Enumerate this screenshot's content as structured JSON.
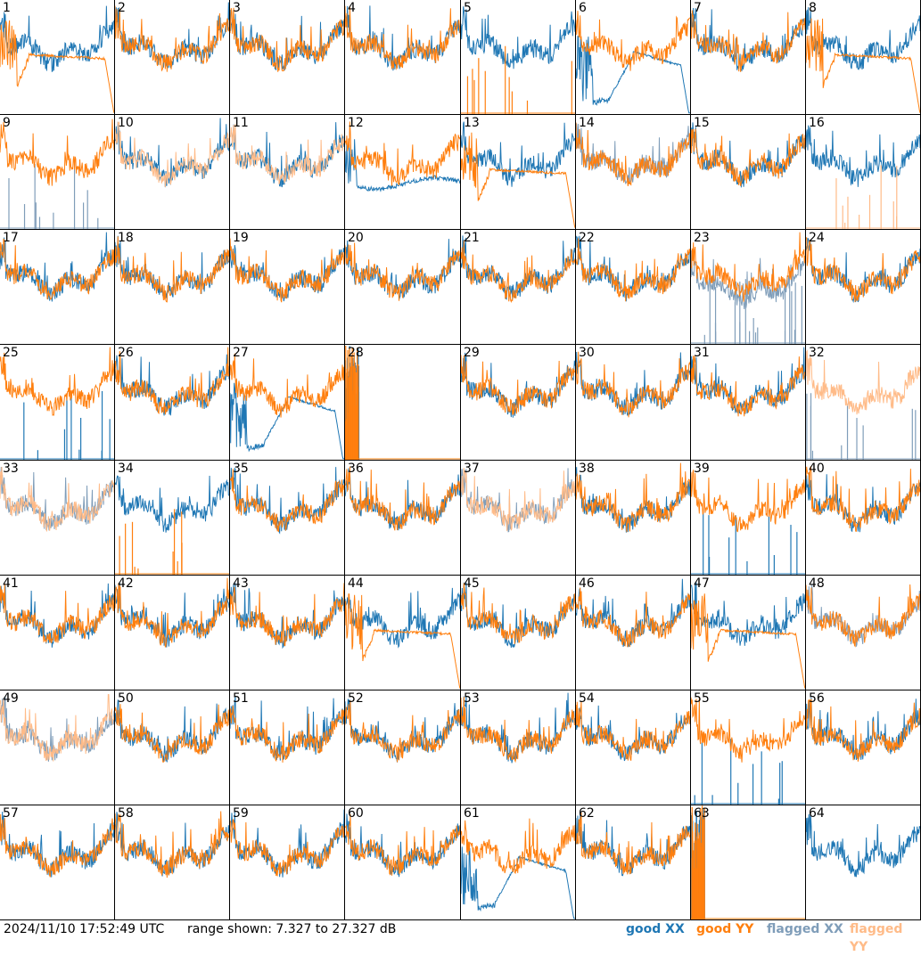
{
  "footer": {
    "timestamp": "2024/11/10 17:52:49 UTC",
    "range_text": "range shown: 7.327 to 27.327 dB",
    "legend": [
      {
        "label": "good XX",
        "color": "#1f77b4"
      },
      {
        "label": "good YY",
        "color": "#ff7f0e"
      },
      {
        "label": "flagged XX",
        "color": "#7f9db9"
      },
      {
        "label": "flagged YY",
        "color": "#ffbb88"
      }
    ]
  },
  "chart_data": {
    "type": "line",
    "layout": "8x8 grid of small multiples",
    "ylim": [
      7.327,
      27.327
    ],
    "yunit": "dB",
    "colors": {
      "good_xx": "#1f77b4",
      "good_yy": "#ff7f0e",
      "flagged_xx": "#7f9db9",
      "flagged_yy": "#ffbb88"
    },
    "panels": [
      {
        "id": "1",
        "xx": "good",
        "yy": "good",
        "shape": "yy_rolloff"
      },
      {
        "id": "2",
        "xx": "good",
        "yy": "good",
        "shape": "normal"
      },
      {
        "id": "3",
        "xx": "good",
        "yy": "good",
        "shape": "normal"
      },
      {
        "id": "4",
        "xx": "good",
        "yy": "good",
        "shape": "normal"
      },
      {
        "id": "5",
        "xx": "good",
        "yy": "good",
        "shape": "yy_dead"
      },
      {
        "id": "6",
        "xx": "good",
        "yy": "good",
        "shape": "xx_hump"
      },
      {
        "id": "7",
        "xx": "good",
        "yy": "good",
        "shape": "normal"
      },
      {
        "id": "8",
        "xx": "good",
        "yy": "good",
        "shape": "yy_rolloff"
      },
      {
        "id": "9",
        "xx": "flagged",
        "yy": "good",
        "shape": "xx_dead"
      },
      {
        "id": "10",
        "xx": "good",
        "yy": "flagged",
        "shape": "normal"
      },
      {
        "id": "11",
        "xx": "good",
        "yy": "flagged",
        "shape": "normal"
      },
      {
        "id": "12",
        "xx": "good",
        "yy": "good",
        "shape": "xx_flat"
      },
      {
        "id": "13",
        "xx": "good",
        "yy": "good",
        "shape": "yy_rolloff"
      },
      {
        "id": "14",
        "xx": "flagged",
        "yy": "good",
        "shape": "normal"
      },
      {
        "id": "15",
        "xx": "good",
        "yy": "good",
        "shape": "normal"
      },
      {
        "id": "16",
        "xx": "good",
        "yy": "flagged",
        "shape": "yy_dead"
      },
      {
        "id": "17",
        "xx": "good",
        "yy": "good",
        "shape": "normal"
      },
      {
        "id": "18",
        "xx": "good",
        "yy": "good",
        "shape": "normal"
      },
      {
        "id": "19",
        "xx": "good",
        "yy": "good",
        "shape": "normal"
      },
      {
        "id": "20",
        "xx": "good",
        "yy": "good",
        "shape": "normal"
      },
      {
        "id": "21",
        "xx": "good",
        "yy": "good",
        "shape": "normal"
      },
      {
        "id": "22",
        "xx": "good",
        "yy": "good",
        "shape": "normal"
      },
      {
        "id": "23",
        "xx": "flagged",
        "yy": "good",
        "shape": "xx_noisy"
      },
      {
        "id": "24",
        "xx": "good",
        "yy": "good",
        "shape": "normal"
      },
      {
        "id": "25",
        "xx": "good",
        "yy": "good",
        "shape": "xx_dead"
      },
      {
        "id": "26",
        "xx": "good",
        "yy": "good",
        "shape": "normal"
      },
      {
        "id": "27",
        "xx": "good",
        "yy": "good",
        "shape": "xx_hump"
      },
      {
        "id": "28",
        "xx": "good",
        "yy": "good",
        "shape": "both_dead"
      },
      {
        "id": "29",
        "xx": "good",
        "yy": "good",
        "shape": "normal"
      },
      {
        "id": "30",
        "xx": "good",
        "yy": "good",
        "shape": "normal"
      },
      {
        "id": "31",
        "xx": "good",
        "yy": "good",
        "shape": "normal"
      },
      {
        "id": "32",
        "xx": "flagged",
        "yy": "flagged",
        "shape": "xx_dead"
      },
      {
        "id": "33",
        "xx": "flagged",
        "yy": "flagged",
        "shape": "normal"
      },
      {
        "id": "34",
        "xx": "good",
        "yy": "good",
        "shape": "yy_dead"
      },
      {
        "id": "35",
        "xx": "good",
        "yy": "good",
        "shape": "normal"
      },
      {
        "id": "36",
        "xx": "good",
        "yy": "good",
        "shape": "normal"
      },
      {
        "id": "37",
        "xx": "flagged",
        "yy": "flagged",
        "shape": "normal"
      },
      {
        "id": "38",
        "xx": "good",
        "yy": "good",
        "shape": "normal"
      },
      {
        "id": "39",
        "xx": "good",
        "yy": "good",
        "shape": "xx_dead"
      },
      {
        "id": "40",
        "xx": "good",
        "yy": "good",
        "shape": "normal"
      },
      {
        "id": "41",
        "xx": "good",
        "yy": "good",
        "shape": "normal"
      },
      {
        "id": "42",
        "xx": "good",
        "yy": "good",
        "shape": "normal"
      },
      {
        "id": "43",
        "xx": "good",
        "yy": "good",
        "shape": "normal"
      },
      {
        "id": "44",
        "xx": "good",
        "yy": "good",
        "shape": "yy_rolloff"
      },
      {
        "id": "45",
        "xx": "good",
        "yy": "good",
        "shape": "normal"
      },
      {
        "id": "46",
        "xx": "good",
        "yy": "good",
        "shape": "normal"
      },
      {
        "id": "47",
        "xx": "good",
        "yy": "good",
        "shape": "yy_rolloff"
      },
      {
        "id": "48",
        "xx": "flagged",
        "yy": "good",
        "shape": "normal"
      },
      {
        "id": "49",
        "xx": "flagged",
        "yy": "flagged",
        "shape": "normal"
      },
      {
        "id": "50",
        "xx": "good",
        "yy": "good",
        "shape": "normal"
      },
      {
        "id": "51",
        "xx": "good",
        "yy": "good",
        "shape": "normal"
      },
      {
        "id": "52",
        "xx": "good",
        "yy": "good",
        "shape": "normal"
      },
      {
        "id": "53",
        "xx": "good",
        "yy": "good",
        "shape": "normal"
      },
      {
        "id": "54",
        "xx": "good",
        "yy": "good",
        "shape": "normal"
      },
      {
        "id": "55",
        "xx": "good",
        "yy": "good",
        "shape": "xx_dead"
      },
      {
        "id": "56",
        "xx": "good",
        "yy": "good",
        "shape": "normal"
      },
      {
        "id": "57",
        "xx": "good",
        "yy": "good",
        "shape": "normal"
      },
      {
        "id": "58",
        "xx": "good",
        "yy": "good",
        "shape": "normal"
      },
      {
        "id": "59",
        "xx": "good",
        "yy": "good",
        "shape": "normal"
      },
      {
        "id": "60",
        "xx": "good",
        "yy": "good",
        "shape": "normal"
      },
      {
        "id": "61",
        "xx": "good",
        "yy": "good",
        "shape": "xx_hump"
      },
      {
        "id": "62",
        "xx": "good",
        "yy": "good",
        "shape": "normal"
      },
      {
        "id": "63",
        "xx": "good",
        "yy": "good",
        "shape": "both_dead"
      },
      {
        "id": "64",
        "xx": "good",
        "yy": "good",
        "shape": "xx_only"
      }
    ]
  }
}
